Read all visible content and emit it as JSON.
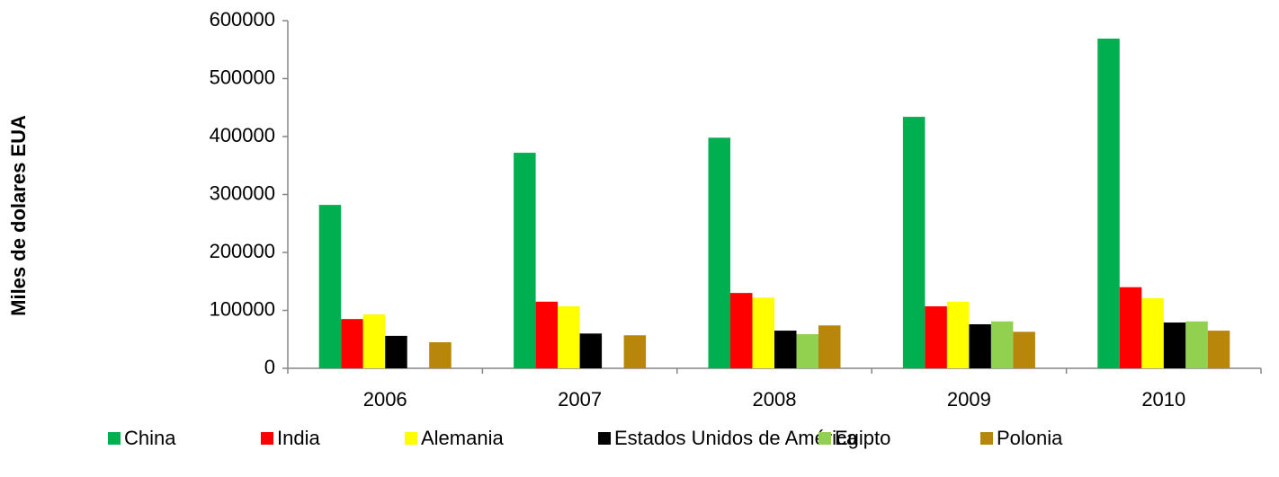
{
  "chart_data": {
    "type": "bar",
    "y_label": "Miles de dolares EUA",
    "categories": [
      "2006",
      "2007",
      "2008",
      "2009",
      "2010"
    ],
    "series": [
      {
        "name": "China",
        "color": "#00b050",
        "values": [
          282000,
          372000,
          398000,
          434000,
          569000
        ]
      },
      {
        "name": "India",
        "color": "#ff0000",
        "values": [
          85000,
          115000,
          130000,
          107000,
          140000
        ]
      },
      {
        "name": "Alemania",
        "color": "#ffff00",
        "values": [
          93000,
          107000,
          122000,
          115000,
          121000
        ]
      },
      {
        "name": "Estados Unidos de América",
        "color": "#000000",
        "values": [
          56000,
          60000,
          65000,
          76000,
          79000
        ]
      },
      {
        "name": "Egipto",
        "color": "#92d050",
        "values": [
          null,
          null,
          59000,
          81000,
          81000
        ]
      },
      {
        "name": "Polonia",
        "color": "#b8860b",
        "values": [
          45000,
          57000,
          74000,
          63000,
          65000
        ]
      }
    ],
    "ylim": [
      0,
      600000
    ],
    "yticks": [
      0,
      100000,
      200000,
      300000,
      400000,
      500000,
      600000
    ],
    "legend": "bottom"
  }
}
